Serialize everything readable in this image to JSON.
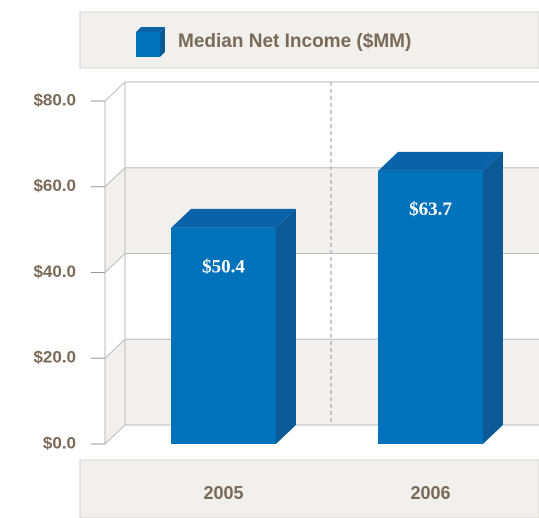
{
  "chart_data": {
    "type": "bar3d",
    "categories": [
      "2005",
      "2006"
    ],
    "series": [
      {
        "name": "Median Net Income ($MM)",
        "color": "#0072bc",
        "values": [
          50.4,
          63.7
        ],
        "value_labels": [
          "$50.4",
          "$63.7"
        ]
      }
    ],
    "ylim": [
      0,
      80
    ],
    "yticks": [
      {
        "value": 0,
        "label": "$0.0"
      },
      {
        "value": 20,
        "label": "$20.0"
      },
      {
        "value": 40,
        "label": "$40.0"
      },
      {
        "value": 60,
        "label": "$60.0"
      },
      {
        "value": 80,
        "label": "$80.0"
      }
    ],
    "grid": true
  }
}
